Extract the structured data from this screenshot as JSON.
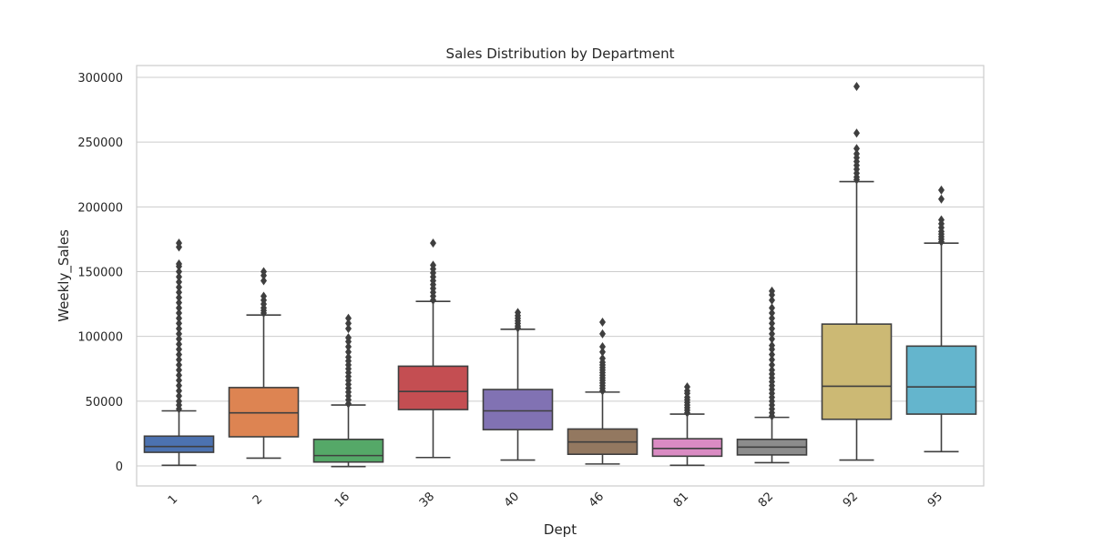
{
  "chart_data": {
    "type": "box",
    "title": "Sales Distribution by Department",
    "xlabel": "Dept",
    "ylabel": "Weekly_Sales",
    "ylim": [
      -15000,
      310000
    ],
    "yticks": [
      0,
      50000,
      100000,
      150000,
      200000,
      250000,
      300000
    ],
    "ytick_labels": [
      "0",
      "50000",
      "100000",
      "150000",
      "200000",
      "250000",
      "300000"
    ],
    "grid": "horizontal",
    "categories": [
      "1",
      "2",
      "16",
      "38",
      "40",
      "46",
      "81",
      "82",
      "92",
      "95"
    ],
    "boxes": [
      {
        "category": "1",
        "color": "#4c72b0",
        "whisker_low": 500,
        "q1": 10500,
        "median": 15000,
        "q3": 23000,
        "whisker_high": 42500,
        "outliers": [
          44000,
          47000,
          50000,
          54000,
          58000,
          62000,
          66000,
          70000,
          74000,
          78000,
          82000,
          86000,
          90000,
          94000,
          98000,
          102000,
          106000,
          110000,
          114000,
          118000,
          122000,
          126000,
          130000,
          134000,
          138000,
          142000,
          146000,
          150000,
          154000,
          156000,
          169000,
          172000
        ]
      },
      {
        "category": "2",
        "color": "#dd8452",
        "whisker_low": 6000,
        "q1": 22500,
        "median": 41000,
        "q3": 60500,
        "whisker_high": 116500,
        "outliers": [
          118000,
          120000,
          122000,
          125000,
          128000,
          131000,
          143000,
          147000,
          150000
        ]
      },
      {
        "category": "16",
        "color": "#55a868",
        "whisker_low": -500,
        "q1": 3000,
        "median": 8000,
        "q3": 20500,
        "whisker_high": 47000,
        "outliers": [
          48000,
          51000,
          54000,
          57000,
          60000,
          63000,
          66000,
          69000,
          72000,
          75000,
          78000,
          81000,
          84000,
          88000,
          92000,
          96000,
          99000,
          106000,
          110000,
          114000
        ]
      },
      {
        "category": "38",
        "color": "#c44e52",
        "whisker_low": 6500,
        "q1": 43500,
        "median": 57500,
        "q3": 77000,
        "whisker_high": 127000,
        "outliers": [
          128000,
          131000,
          134000,
          137000,
          140000,
          143000,
          146000,
          149000,
          152000,
          155000,
          172000
        ]
      },
      {
        "category": "40",
        "color": "#8172b3",
        "whisker_low": 4500,
        "q1": 28000,
        "median": 42500,
        "q3": 59000,
        "whisker_high": 105500,
        "outliers": [
          106500,
          108000,
          110000,
          112000,
          114000,
          116000,
          118500
        ]
      },
      {
        "category": "46",
        "color": "#937860",
        "whisker_low": 1500,
        "q1": 9000,
        "median": 18500,
        "q3": 28500,
        "whisker_high": 57000,
        "outliers": [
          58000,
          60000,
          62000,
          64000,
          66000,
          68000,
          70000,
          72000,
          74000,
          76000,
          78000,
          80000,
          83000,
          88000,
          92000,
          102000,
          111000
        ]
      },
      {
        "category": "81",
        "color": "#da8bc3",
        "whisker_low": 500,
        "q1": 7500,
        "median": 13500,
        "q3": 21000,
        "whisker_high": 40000,
        "outliers": [
          41000,
          43000,
          45000,
          47000,
          49000,
          51000,
          53000,
          56000,
          58000,
          61000
        ]
      },
      {
        "category": "82",
        "color": "#8c8c8c",
        "whisker_low": 2500,
        "q1": 8500,
        "median": 14500,
        "q3": 20500,
        "whisker_high": 37500,
        "outliers": [
          38500,
          41000,
          44000,
          47000,
          50000,
          53000,
          56000,
          59000,
          62000,
          65000,
          68000,
          71000,
          74000,
          78000,
          82000,
          86000,
          90000,
          93000,
          98000,
          102000,
          106000,
          110000,
          114000,
          118000,
          122000,
          128000,
          132000,
          135000
        ]
      },
      {
        "category": "92",
        "color": "#ccb974",
        "whisker_low": 4500,
        "q1": 36000,
        "median": 61500,
        "q3": 109500,
        "whisker_high": 219500,
        "outliers": [
          221000,
          223000,
          226000,
          229000,
          232000,
          235000,
          238000,
          241000,
          245000,
          257000,
          293000
        ]
      },
      {
        "category": "95",
        "color": "#64b5cd",
        "whisker_low": 11000,
        "q1": 40000,
        "median": 61000,
        "q3": 92500,
        "whisker_high": 172000,
        "outliers": [
          173000,
          175000,
          177000,
          179000,
          181000,
          184000,
          187000,
          190000,
          206000,
          213000
        ]
      }
    ]
  }
}
